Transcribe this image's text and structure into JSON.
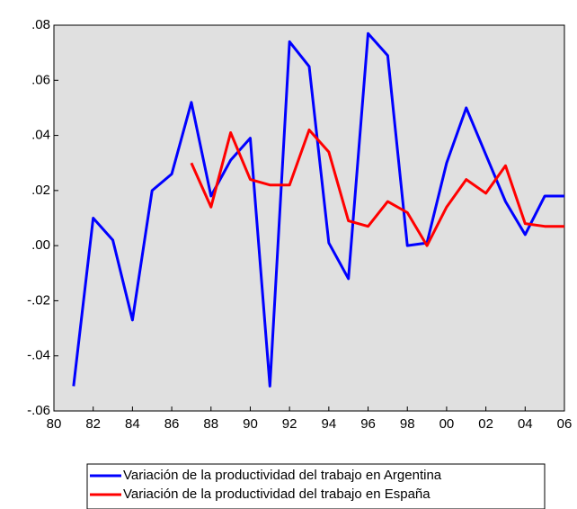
{
  "chart_data": {
    "type": "line",
    "x": [
      1981,
      1982,
      1983,
      1984,
      1985,
      1986,
      1987,
      1988,
      1989,
      1990,
      1991,
      1992,
      1993,
      1994,
      1995,
      1996,
      1997,
      1998,
      1999,
      2000,
      2001,
      2002,
      2003,
      2004,
      2005,
      2006
    ],
    "series": [
      {
        "name": "Variación de la productividad del trabajo en Argentina",
        "color": "#0000ff",
        "values": [
          -0.051,
          0.01,
          0.002,
          -0.027,
          0.02,
          0.026,
          0.052,
          0.018,
          0.031,
          0.039,
          -0.051,
          0.074,
          0.065,
          0.001,
          -0.012,
          0.077,
          0.069,
          0.0,
          0.001,
          0.03,
          0.05,
          0.033,
          0.016,
          0.004,
          0.018,
          0.018
        ]
      },
      {
        "name": "Variación de la productividad del trabajo en España",
        "color": "#ff0000",
        "values": [
          null,
          null,
          null,
          null,
          null,
          null,
          0.03,
          0.014,
          0.041,
          0.024,
          0.022,
          0.022,
          0.042,
          0.034,
          0.009,
          0.007,
          0.016,
          0.012,
          0.0,
          0.014,
          0.024,
          0.019,
          0.029,
          0.008,
          0.007,
          0.007
        ]
      }
    ],
    "xlim": [
      1980,
      2006
    ],
    "xticks": [
      {
        "value": 1980,
        "label": "80"
      },
      {
        "value": 1982,
        "label": "82"
      },
      {
        "value": 1984,
        "label": "84"
      },
      {
        "value": 1986,
        "label": "86"
      },
      {
        "value": 1988,
        "label": "88"
      },
      {
        "value": 1990,
        "label": "90"
      },
      {
        "value": 1992,
        "label": "92"
      },
      {
        "value": 1994,
        "label": "94"
      },
      {
        "value": 1996,
        "label": "96"
      },
      {
        "value": 1998,
        "label": "98"
      },
      {
        "value": 2000,
        "label": "00"
      },
      {
        "value": 2002,
        "label": "02"
      },
      {
        "value": 2004,
        "label": "04"
      },
      {
        "value": 2006,
        "label": "06"
      }
    ],
    "ylim": [
      -0.06,
      0.08
    ],
    "yticks": [
      {
        "value": -0.06,
        "label": "-.06"
      },
      {
        "value": -0.04,
        "label": "-.04"
      },
      {
        "value": -0.02,
        "label": "-.02"
      },
      {
        "value": 0,
        "label": ".00"
      },
      {
        "value": 0.02,
        "label": ".02"
      },
      {
        "value": 0.04,
        "label": ".04"
      },
      {
        "value": 0.06,
        "label": ".06"
      },
      {
        "value": 0.08,
        "label": ".08"
      }
    ],
    "background": "#e0e0e0",
    "grid": false
  }
}
